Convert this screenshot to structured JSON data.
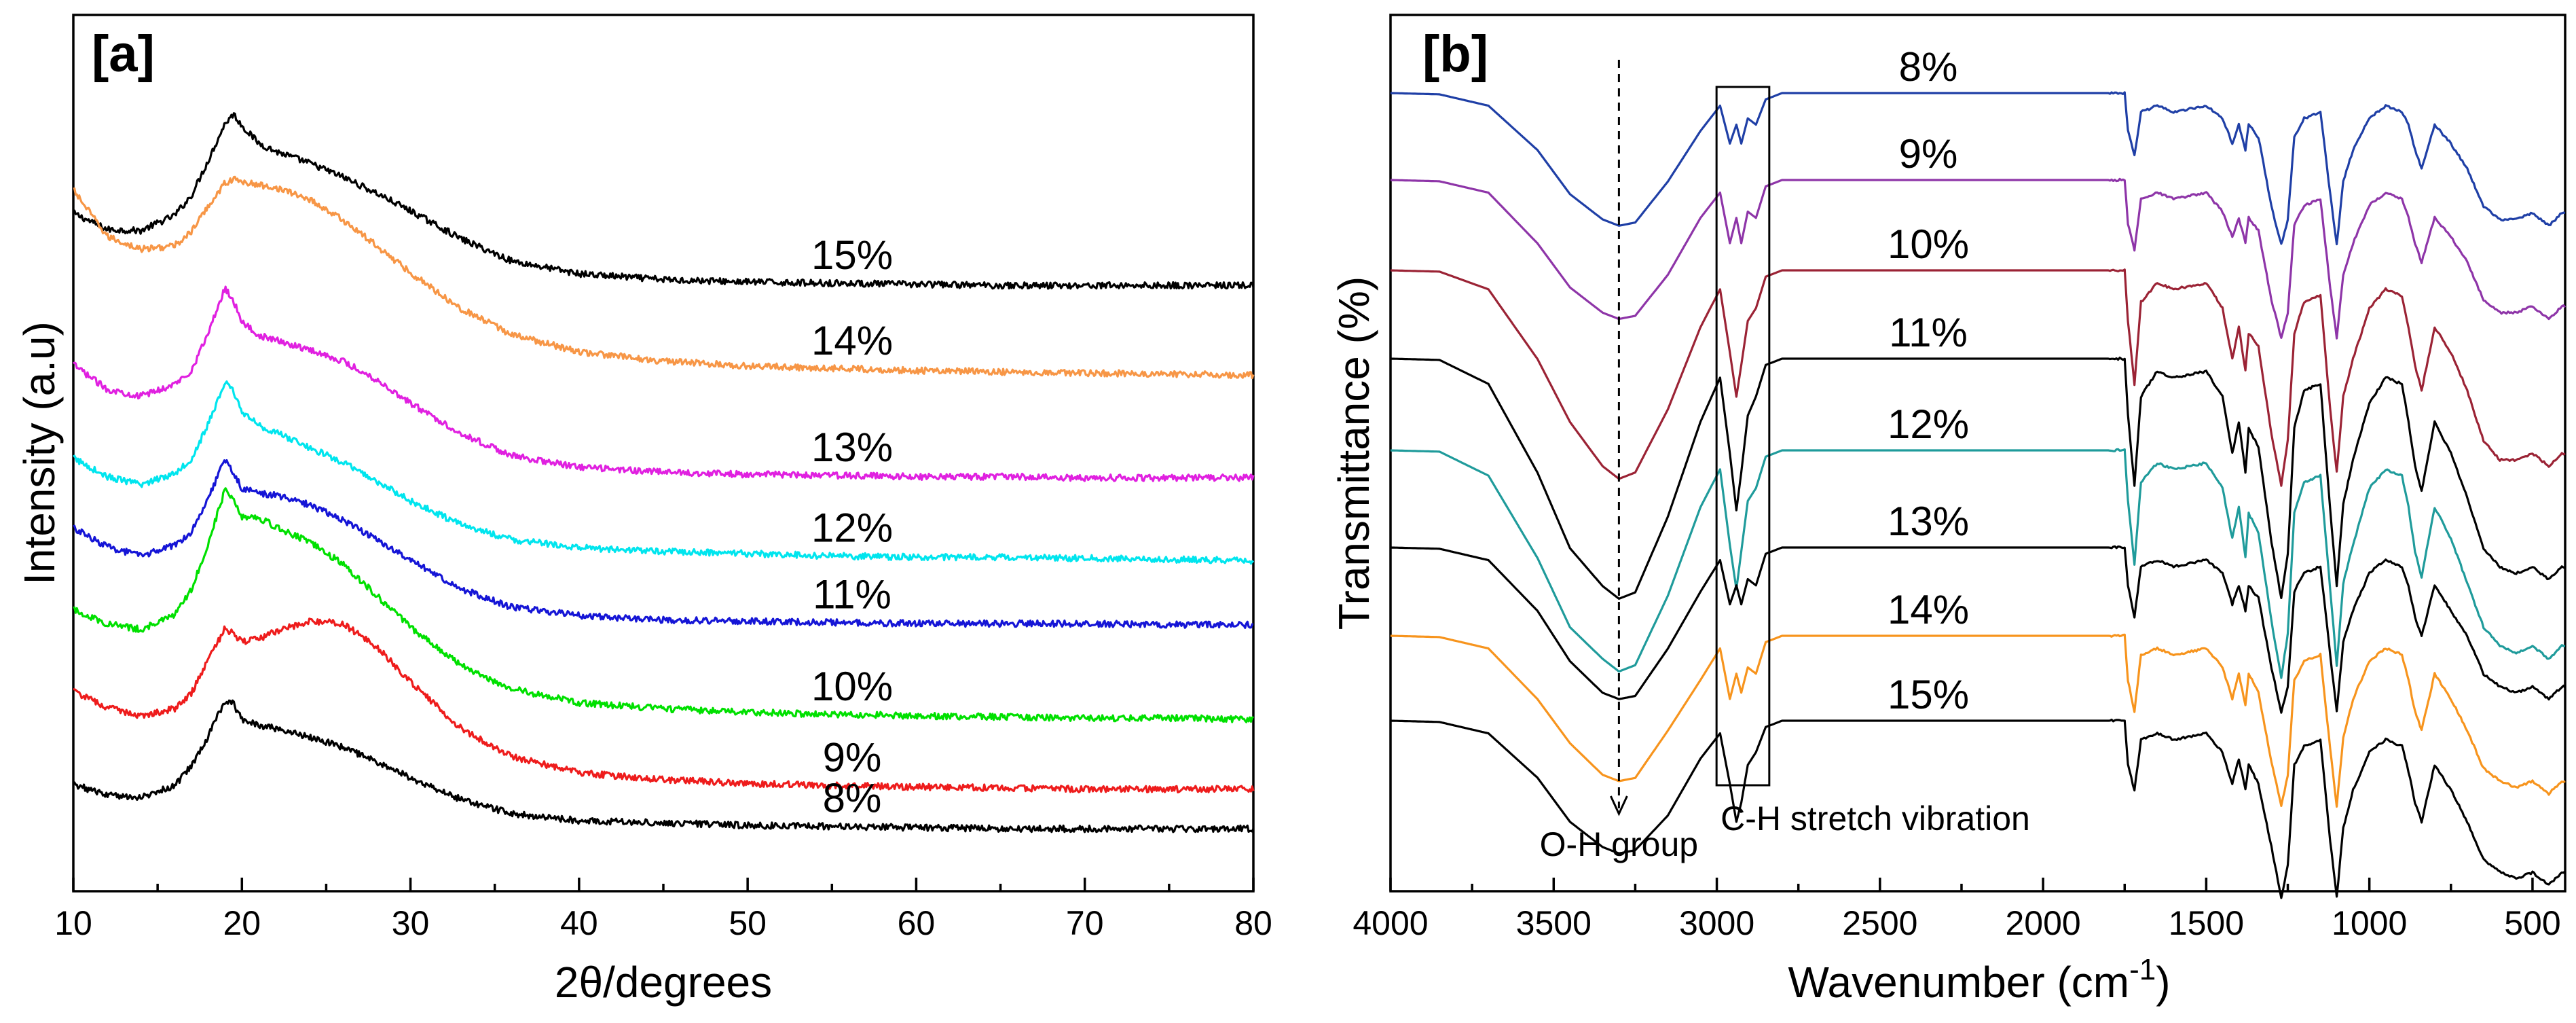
{
  "chart_data": [
    {
      "type": "line",
      "panel_label": "[a]",
      "title": "",
      "xlabel": "2θ/degrees",
      "ylabel": "Intensity (a.u)",
      "xlim": [
        10,
        80
      ],
      "xticks": [
        10,
        20,
        30,
        40,
        50,
        60,
        70,
        80
      ],
      "yticks_shown": false,
      "x": [
        10,
        12,
        14,
        16,
        17,
        18,
        19,
        19.5,
        20,
        21,
        22,
        24,
        26,
        28,
        30,
        33,
        36,
        40,
        45,
        50,
        55,
        60,
        65,
        70,
        75,
        80
      ],
      "series": [
        {
          "name": "15%",
          "color": "#000000",
          "values": [
            51,
            49.6,
            49.5,
            50.8,
            52.5,
            55.5,
            58.7,
            59.5,
            58.5,
            57,
            56.3,
            55.3,
            54.1,
            52.7,
            51.2,
            48.8,
            46.9,
            45.8,
            45.3,
            45.1,
            45,
            44.9,
            44.8,
            44.8,
            44.8,
            44.8
          ]
        },
        {
          "name": "14%",
          "color": "#f79646",
          "values": [
            53,
            49,
            47.9,
            48.2,
            49.4,
            51.6,
            53.6,
            53.9,
            53.7,
            53.4,
            53.2,
            52.2,
            50.4,
            48.2,
            45.9,
            42.8,
            40.6,
            39.1,
            38.3,
            37.9,
            37.7,
            37.5,
            37.4,
            37.3,
            37.2,
            37.1
          ]
        },
        {
          "name": "13%",
          "color": "#e020e0",
          "values": [
            38,
            35.9,
            35.3,
            36.3,
            37.5,
            40.7,
            44.6,
            43.5,
            41.7,
            40.5,
            40.1,
            39.3,
            38.3,
            36.7,
            34.7,
            32.1,
            30.2,
            29.2,
            28.8,
            28.6,
            28.5,
            28.4,
            28.4,
            28.3,
            28.3,
            28.3
          ]
        },
        {
          "name": "12%",
          "color": "#00e5ee",
          "values": [
            30,
            28.4,
            27.7,
            28.7,
            29.9,
            32.9,
            36.5,
            35.7,
            34,
            32.8,
            32.2,
            30.9,
            29.6,
            28,
            26.3,
            24.3,
            23,
            22.3,
            22,
            21.8,
            21.6,
            21.5,
            21.5,
            21.4,
            21.3,
            21.2
          ]
        },
        {
          "name": "11%",
          "color": "#1515d6",
          "values": [
            24,
            22.4,
            21.6,
            22.5,
            23.7,
            26.6,
            29.9,
            28.7,
            27.4,
            27,
            26.8,
            26,
            24.7,
            23,
            21.2,
            18.8,
            17.2,
            16.5,
            16.1,
            16,
            15.9,
            15.8,
            15.8,
            15.8,
            15.7,
            15.7
          ]
        },
        {
          "name": "10%",
          "color": "#00e000",
          "values": [
            17,
            15.8,
            15.3,
            16.5,
            18.7,
            22.7,
            27.3,
            26.5,
            25,
            24.9,
            24.1,
            22.8,
            20.9,
            18.2,
            15.5,
            12.2,
            10.2,
            9,
            8.5,
            8.2,
            8,
            7.9,
            7.8,
            7.7,
            7.7,
            7.6
          ]
        },
        {
          "name": "9%",
          "color": "#ee1c1c",
          "values": [
            10,
            8.6,
            7.9,
            8.5,
            9.8,
            12.7,
            15.4,
            14.9,
            14.2,
            14.5,
            15.1,
            16,
            15.8,
            13.8,
            10.8,
            6.8,
            4.4,
            3,
            2.4,
            2.1,
            1.9,
            1.8,
            1.7,
            1.6,
            1.6,
            1.6
          ]
        },
        {
          "name": "8%",
          "color": "#000000",
          "values": [
            2,
            1.1,
            0.9,
            1.9,
            3.6,
            6.1,
            9.2,
            8.9,
            7.6,
            7.1,
            6.8,
            6.1,
            5.2,
            3.9,
            2.6,
            0.7,
            -0.5,
            -1.1,
            -1.3,
            -1.5,
            -1.6,
            -1.7,
            -1.8,
            -1.8,
            -1.8,
            -1.8
          ]
        }
      ]
    },
    {
      "type": "line",
      "panel_label": "[b]",
      "title": "",
      "xlabel": "Wavenumber (cm",
      "xlabel_sup": "-1",
      "xlabel_tail": ")",
      "ylabel": "Transmittance (%)",
      "xlim": [
        4000,
        400
      ],
      "xticks": [
        4000,
        3500,
        3000,
        2500,
        2000,
        1500,
        1000,
        500
      ],
      "yticks_shown": false,
      "annotations": [
        {
          "text": "O-H group",
          "wavenumber": 3300
        },
        {
          "text": "C-H stretch vibration",
          "wavenumber_range": [
            2980,
            2860
          ]
        }
      ],
      "x": [
        4000,
        3850,
        3700,
        3550,
        3450,
        3350,
        3300,
        3250,
        3150,
        3050,
        2990,
        2960,
        2940,
        2925,
        2905,
        2880,
        2850,
        2800,
        2500,
        2000,
        1750,
        1740,
        1720,
        1700,
        1650,
        1600,
        1500,
        1450,
        1420,
        1400,
        1380,
        1370,
        1340,
        1300,
        1270,
        1250,
        1230,
        1200,
        1150,
        1120,
        1100,
        1080,
        1050,
        1000,
        950,
        900,
        880,
        860,
        840,
        800,
        750,
        700,
        650,
        600,
        550,
        500,
        450,
        430,
        410,
        400
      ],
      "series": [
        {
          "name": "8%",
          "color": "#1f3fa6",
          "values": [
            100,
            99.8,
            98,
            91,
            84,
            80,
            79,
            79.5,
            86,
            94,
            98,
            92,
            95,
            92,
            96,
            95,
            99,
            100,
            100,
            100,
            100,
            94,
            90,
            97,
            98,
            97,
            98,
            96,
            92,
            95,
            91,
            95,
            93,
            82,
            76,
            80,
            93,
            96,
            97,
            84,
            76,
            86,
            91,
            96,
            98,
            97,
            95,
            91,
            88,
            95,
            92,
            88,
            82,
            80,
            80,
            81,
            79,
            80,
            81,
            81
          ]
        },
        {
          "name": "9%",
          "color": "#8e35a8",
          "values": [
            100,
            99.8,
            98,
            90,
            83,
            79,
            78,
            78.5,
            85,
            94,
            98,
            90,
            94,
            90,
            95,
            94,
            99,
            100,
            100,
            100,
            100,
            93,
            89,
            97,
            98,
            97,
            98,
            95,
            91,
            94,
            90,
            94,
            92,
            81,
            75,
            79,
            93,
            96,
            97,
            83,
            75,
            85,
            90,
            96,
            98,
            97,
            94,
            90,
            87,
            94,
            91,
            87,
            81,
            79,
            79,
            80,
            78,
            79,
            80,
            80
          ]
        },
        {
          "name": "10%",
          "color": "#9b2335",
          "values": [
            100,
            99.8,
            97,
            86,
            76,
            69,
            67,
            68,
            78,
            91,
            97,
            87,
            80,
            85,
            92,
            94,
            99,
            100,
            100,
            100,
            100,
            92,
            82,
            95,
            98,
            97,
            98,
            94,
            86,
            91,
            84,
            90,
            88,
            74,
            66,
            73,
            90,
            95,
            96,
            78,
            68,
            80,
            86,
            94,
            97,
            96,
            91,
            85,
            81,
            91,
            87,
            81,
            73,
            70,
            70,
            71,
            69,
            70,
            71,
            71
          ]
        },
        {
          "name": "11%",
          "color": "#000000",
          "values": [
            100,
            99.8,
            96,
            82,
            70,
            64,
            62,
            63,
            75,
            90,
            97,
            85,
            76,
            82,
            91,
            94,
            99,
            100,
            100,
            100,
            100,
            91,
            80,
            94,
            98,
            97,
            98,
            94,
            85,
            90,
            82,
            89,
            86,
            71,
            62,
            69,
            89,
            95,
            96,
            76,
            64,
            77,
            84,
            93,
            97,
            96,
            90,
            83,
            79,
            90,
            85,
            78,
            70,
            67,
            66,
            67,
            65,
            66,
            67,
            67
          ]
        },
        {
          "name": "12%",
          "color": "#1f9b9b",
          "values": [
            100,
            99.8,
            96,
            83,
            72,
            67,
            65,
            66,
            77,
            91,
            97,
            85,
            78,
            84,
            92,
            94,
            99,
            100,
            100,
            100,
            100,
            92,
            82,
            95,
            98,
            97,
            98,
            94,
            86,
            91,
            83,
            90,
            87,
            73,
            64,
            71,
            90,
            95,
            96,
            78,
            66,
            79,
            85,
            94,
            97,
            96,
            91,
            84,
            80,
            91,
            86,
            79,
            72,
            69,
            68,
            69,
            67,
            68,
            69,
            69
          ]
        },
        {
          "name": "13%",
          "color": "#000000",
          "values": [
            100,
            99.8,
            98,
            90,
            82,
            77,
            76,
            76.5,
            84,
            93,
            98,
            91,
            94,
            91,
            95,
            94,
            99,
            100,
            100,
            100,
            100,
            94,
            89,
            97,
            98,
            97,
            98,
            96,
            91,
            94,
            90,
            94,
            92,
            81,
            74,
            78,
            93,
            96,
            97,
            83,
            74,
            85,
            90,
            96,
            98,
            97,
            94,
            89,
            86,
            94,
            90,
            86,
            80,
            78,
            77,
            78,
            76,
            77,
            78,
            78
          ]
        },
        {
          "name": "14%",
          "color": "#f7941d",
          "values": [
            100,
            99.8,
            98,
            90,
            83,
            78,
            77,
            77.5,
            85,
            93,
            98,
            90,
            94,
            91,
            95,
            94,
            99,
            100,
            100,
            100,
            100,
            93,
            88,
            97,
            98,
            97,
            98,
            95,
            90,
            94,
            89,
            94,
            91,
            80,
            73,
            78,
            93,
            96,
            97,
            82,
            73,
            84,
            90,
            96,
            98,
            97,
            93,
            88,
            85,
            94,
            90,
            85,
            79,
            77,
            76,
            77,
            75,
            76,
            77,
            77
          ]
        },
        {
          "name": "15%",
          "color": "#000000",
          "values": [
            100,
            99.8,
            98,
            91,
            84,
            80,
            79,
            79.5,
            85,
            94,
            98,
            90,
            84,
            87,
            93,
            95,
            99,
            100,
            100,
            100,
            100,
            93,
            89,
            97,
            98,
            97,
            98,
            95,
            90,
            94,
            89,
            93,
            90,
            80,
            72,
            77,
            93,
            96,
            97,
            81,
            72,
            83,
            89,
            95,
            97,
            96,
            92,
            87,
            84,
            93,
            89,
            84,
            78,
            76,
            75,
            76,
            74,
            75,
            76,
            76
          ]
        }
      ]
    }
  ]
}
